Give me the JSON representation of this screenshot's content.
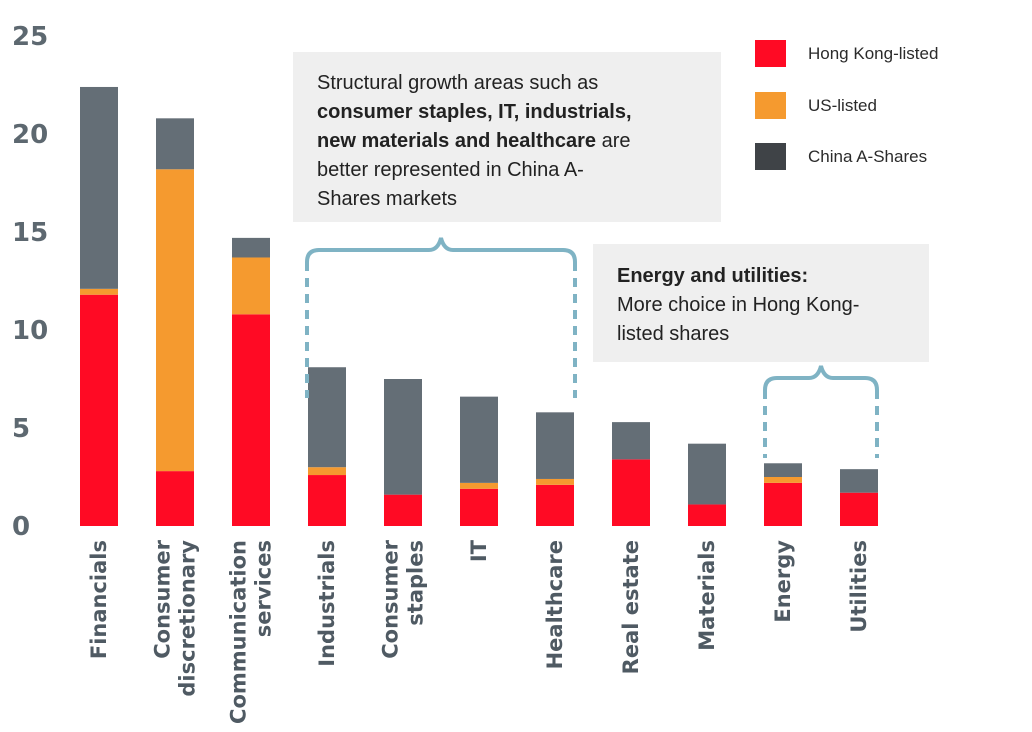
{
  "chart_data": {
    "type": "bar",
    "stacked": true,
    "categories": [
      "Financials",
      "Consumer discretionary",
      "Communication services",
      "Industrials",
      "Consumer staples",
      "IT",
      "Healthcare",
      "Real estate",
      "Materials",
      "Energy",
      "Utilities"
    ],
    "category_lines": [
      [
        "Financials"
      ],
      [
        "Consumer",
        "discretionary"
      ],
      [
        "Communication",
        "services"
      ],
      [
        "Industrials"
      ],
      [
        "Consumer",
        "staples"
      ],
      [
        "IT"
      ],
      [
        "Healthcare"
      ],
      [
        "Real estate"
      ],
      [
        "Materials"
      ],
      [
        "Energy"
      ],
      [
        "Utilities"
      ]
    ],
    "series": [
      {
        "name": "Hong Kong-listed",
        "color": "#ff0a24",
        "values": [
          11.8,
          2.8,
          10.8,
          2.6,
          1.6,
          1.9,
          2.1,
          3.4,
          1.1,
          2.2,
          1.7
        ]
      },
      {
        "name": "US-listed",
        "color": "#f59a2f",
        "values": [
          0.3,
          15.4,
          2.9,
          0.4,
          0.0,
          0.3,
          0.3,
          0.0,
          0.0,
          0.3,
          0.0
        ]
      },
      {
        "name": "China A-Shares",
        "color": "#646e76",
        "values": [
          10.3,
          2.6,
          1.0,
          5.1,
          5.9,
          4.4,
          3.4,
          1.9,
          3.1,
          0.7,
          1.2
        ]
      }
    ],
    "legend_swatches": [
      "#ff0a24",
      "#f59a2f",
      "#3f4347"
    ],
    "ylim": [
      0,
      25
    ],
    "yticks": [
      0,
      5,
      10,
      15,
      20,
      25
    ],
    "grid": false,
    "legend_position": "top-right",
    "annotations": [
      {
        "lines": [
          [
            "Structural growth areas such as"
          ],
          [
            "consumer staples, IT, industrials,",
            "bold"
          ],
          [
            "new materials and healthcare",
            "bold",
            " are"
          ],
          [
            "better represented in China A-"
          ],
          [
            "Shares markets"
          ]
        ],
        "brace_from": "Industrials",
        "brace_to": "Healthcare"
      },
      {
        "lines": [
          [
            "Energy and utilities:",
            "bold"
          ],
          [
            "More choice in Hong Kong-"
          ],
          [
            "listed shares"
          ]
        ],
        "brace_from": "Energy",
        "brace_to": "Utilities"
      }
    ]
  },
  "colors": {
    "axis_text": "#5d6870",
    "brace": "#7fb3c4",
    "callout_bg": "#efefef"
  }
}
